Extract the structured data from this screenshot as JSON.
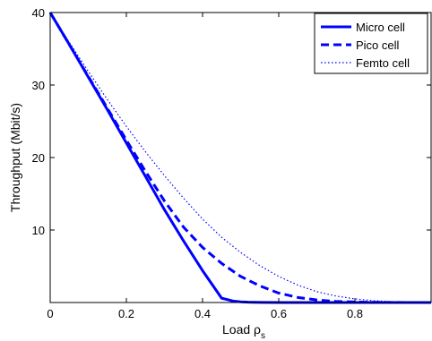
{
  "chart_data": {
    "type": "line",
    "title": "",
    "xlabel": "Load ρ",
    "xlabel_subscript": "s",
    "ylabel": "Throughput (Mbit/s)",
    "xlim": [
      0,
      1
    ],
    "ylim": [
      0,
      40
    ],
    "xticks": [
      0,
      0.2,
      0.4,
      0.6,
      0.8
    ],
    "xtick_labels": [
      "0",
      "0.2",
      "0.4",
      "0.6",
      "0.8"
    ],
    "yticks": [
      10,
      20,
      30,
      40
    ],
    "ytick_labels": [
      "10",
      "20",
      "30",
      "40"
    ],
    "grid": false,
    "legend_position": "top-right",
    "line_color": "#0000ff",
    "series": [
      {
        "name": "Micro cell",
        "style": "solid",
        "x": [
          0,
          0.05,
          0.1,
          0.15,
          0.2,
          0.25,
          0.3,
          0.35,
          0.4,
          0.45,
          0.48,
          0.5,
          0.52,
          0.55,
          0.6,
          0.7,
          0.8,
          0.9,
          1.0
        ],
        "y": [
          40,
          35.6,
          31.1,
          26.6,
          22.0,
          17.4,
          12.8,
          8.5,
          4.4,
          0.6,
          0.2,
          0.1,
          0.05,
          0.02,
          0,
          0,
          0,
          0,
          0
        ]
      },
      {
        "name": "Pico cell",
        "style": "dashed",
        "x": [
          0,
          0.05,
          0.1,
          0.15,
          0.2,
          0.25,
          0.3,
          0.35,
          0.4,
          0.45,
          0.5,
          0.55,
          0.6,
          0.65,
          0.7,
          0.75,
          0.8,
          0.85,
          0.9,
          1.0
        ],
        "y": [
          40,
          35.6,
          31.2,
          26.8,
          22.4,
          18.1,
          14.0,
          10.4,
          7.6,
          5.4,
          3.6,
          2.3,
          1.3,
          0.7,
          0.35,
          0.15,
          0.07,
          0.03,
          0.01,
          0
        ]
      },
      {
        "name": "Femto cell",
        "style": "dotted",
        "x": [
          0,
          0.05,
          0.1,
          0.15,
          0.2,
          0.25,
          0.3,
          0.35,
          0.4,
          0.45,
          0.5,
          0.55,
          0.6,
          0.65,
          0.7,
          0.75,
          0.8,
          0.85,
          0.9,
          0.95,
          1.0
        ],
        "y": [
          40,
          35.9,
          31.9,
          28.0,
          24.3,
          20.8,
          17.5,
          14.4,
          11.5,
          9.0,
          6.9,
          5.1,
          3.6,
          2.4,
          1.5,
          0.9,
          0.5,
          0.25,
          0.1,
          0.03,
          0
        ]
      }
    ]
  }
}
